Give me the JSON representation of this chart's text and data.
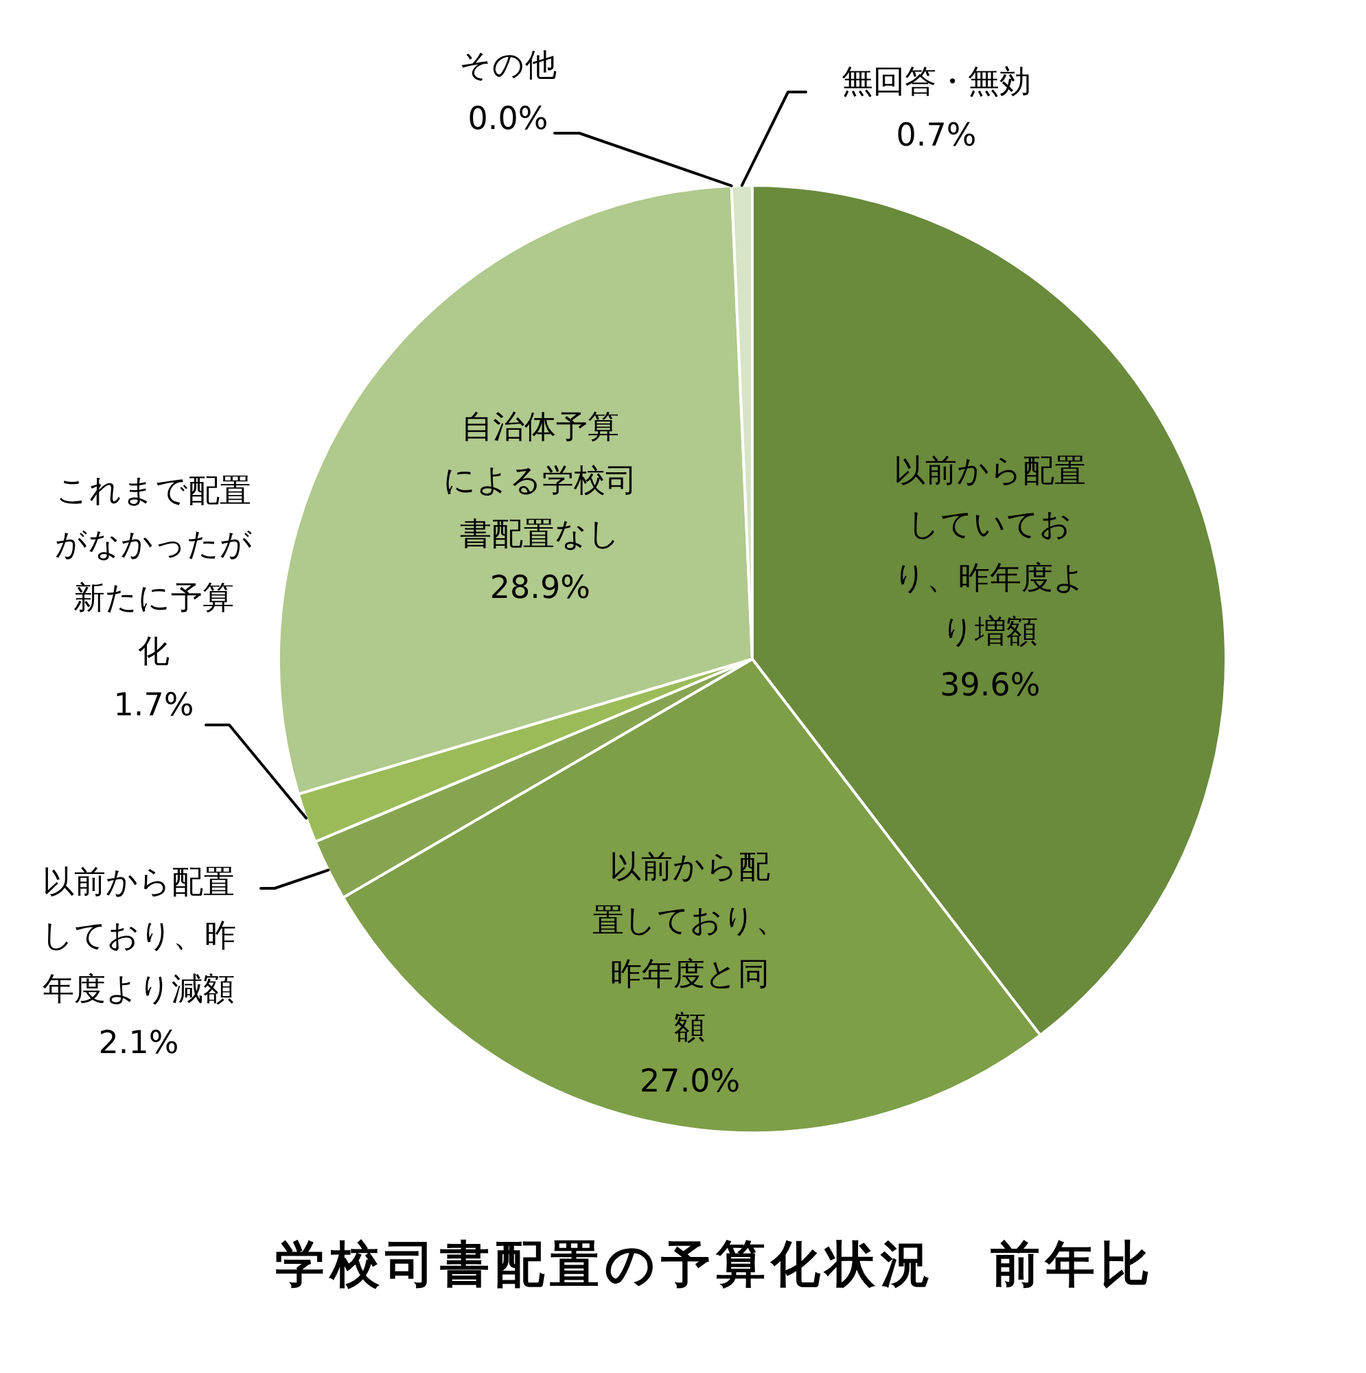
{
  "chart_data": {
    "type": "pie",
    "title": "学校司書配置の予算化状況　前年比",
    "categories": [
      "以前から配置していており、昨年度より増額",
      "以前から配置しており、昨年度と同額",
      "以前から配置しており、昨年度より減額",
      "これまで配置がなかったが新たに予算化",
      "自治体予算による学校司書配置なし",
      "その他",
      "無回答・無効"
    ],
    "values": [
      39.6,
      27.0,
      2.1,
      1.7,
      28.9,
      0.0,
      0.7
    ],
    "colors": [
      "#6a8a3c",
      "#7e9e48",
      "#87a551",
      "#9bbb59",
      "#b0c98c",
      "#c5d8a8",
      "#d7e4c6"
    ],
    "value_labels": [
      "39.6%",
      "27.0%",
      "2.1%",
      "1.7%",
      "28.9%",
      "0.0%",
      "0.7%"
    ]
  }
}
